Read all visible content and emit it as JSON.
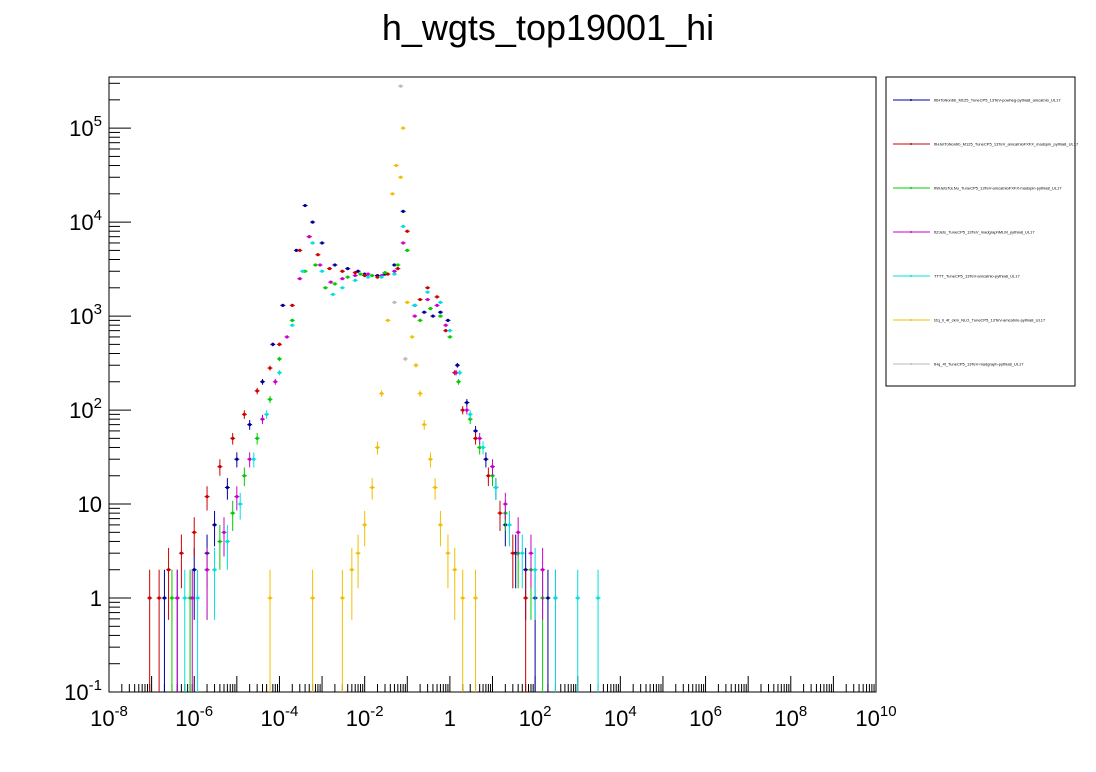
{
  "chart_data": {
    "type": "scatter",
    "title": "h_wgts_top19001_hi",
    "xlabel": "",
    "ylabel": "",
    "xscale": "log",
    "yscale": "log",
    "xlim": [
      1e-08,
      10000000000.0
    ],
    "ylim": [
      0.1,
      350000
    ],
    "x_tick_labels": [
      {
        "base": "10",
        "exp": "-8",
        "value": 1e-08
      },
      {
        "base": "10",
        "exp": "-6",
        "value": 1e-06
      },
      {
        "base": "10",
        "exp": "-4",
        "value": 0.0001
      },
      {
        "base": "10",
        "exp": "-2",
        "value": 0.01
      },
      {
        "base": "1",
        "exp": "",
        "value": 1
      },
      {
        "base": "10",
        "exp": "2",
        "value": 100
      },
      {
        "base": "10",
        "exp": "4",
        "value": 10000.0
      },
      {
        "base": "10",
        "exp": "6",
        "value": 1000000.0
      },
      {
        "base": "10",
        "exp": "8",
        "value": 100000000.0
      },
      {
        "base": "10",
        "exp": "10",
        "value": 10000000000.0
      }
    ],
    "y_tick_labels": [
      {
        "base": "10",
        "exp": "-1",
        "value": 0.1
      },
      {
        "base": "1",
        "exp": "",
        "value": 1
      },
      {
        "base": "10",
        "exp": "",
        "value": 10
      },
      {
        "base": "10",
        "exp": "2",
        "value": 100
      },
      {
        "base": "10",
        "exp": "3",
        "value": 1000
      },
      {
        "base": "10",
        "exp": "4",
        "value": 10000
      },
      {
        "base": "10",
        "exp": "5",
        "value": 100000
      }
    ],
    "legend_position": "right",
    "grid": false,
    "series": [
      {
        "name": "tttHToNonbb_M125_TuneCP5_13TeV-powheg-pythia8_amcatnlo_UL17",
        "color": "#000099",
        "points": [
          [
            2e-07,
            1
          ],
          [
            4e-07,
            1
          ],
          [
            1e-06,
            2
          ],
          [
            2e-06,
            3
          ],
          [
            3e-06,
            6
          ],
          [
            6e-06,
            15
          ],
          [
            1e-05,
            30
          ],
          [
            2e-05,
            70
          ],
          [
            4e-05,
            200
          ],
          [
            7e-05,
            500
          ],
          [
            0.00012,
            1300
          ],
          [
            0.00025,
            5000
          ],
          [
            0.0004,
            15000
          ],
          [
            0.0006,
            10000
          ],
          [
            0.001,
            6000
          ],
          [
            0.002,
            3500
          ],
          [
            0.004,
            3200
          ],
          [
            0.007,
            3000
          ],
          [
            0.01,
            2800
          ],
          [
            0.02,
            2700
          ],
          [
            0.03,
            2800
          ],
          [
            0.05,
            3500
          ],
          [
            0.08,
            13000
          ],
          [
            0.15,
            1300
          ],
          [
            0.25,
            1100
          ],
          [
            0.4,
            1000
          ],
          [
            0.6,
            1100
          ],
          [
            0.9,
            900
          ],
          [
            1.5,
            300
          ],
          [
            2.5,
            120
          ],
          [
            4,
            60
          ],
          [
            7,
            30
          ],
          [
            12,
            15
          ],
          [
            20,
            6
          ],
          [
            35,
            3
          ],
          [
            60,
            2
          ],
          [
            100,
            1
          ],
          [
            200,
            1
          ]
        ]
      },
      {
        "name": "ttHJetToNonbb_M125_TuneCP5_13TeV_amcatnloFXFX_madspin_pythia8_UL17",
        "color": "#cc0000",
        "points": [
          [
            9e-08,
            1
          ],
          [
            1.5e-07,
            1
          ],
          [
            2.5e-07,
            2
          ],
          [
            5e-07,
            3
          ],
          [
            1e-06,
            5
          ],
          [
            2e-06,
            12
          ],
          [
            4e-06,
            25
          ],
          [
            8e-06,
            50
          ],
          [
            1.5e-05,
            90
          ],
          [
            3e-05,
            160
          ],
          [
            6e-05,
            280
          ],
          [
            0.0001,
            500
          ],
          [
            0.0002,
            1300
          ],
          [
            0.0003,
            5000
          ],
          [
            0.0005,
            7000
          ],
          [
            0.0008,
            4500
          ],
          [
            0.0015,
            3200
          ],
          [
            0.003,
            3000
          ],
          [
            0.006,
            2900
          ],
          [
            0.01,
            2700
          ],
          [
            0.02,
            2600
          ],
          [
            0.035,
            2800
          ],
          [
            0.06,
            3200
          ],
          [
            0.1,
            8000
          ],
          [
            0.2,
            1500
          ],
          [
            0.3,
            2000
          ],
          [
            0.5,
            1600
          ],
          [
            0.8,
            700
          ],
          [
            1.3,
            250
          ],
          [
            2,
            100
          ],
          [
            4,
            50
          ],
          [
            8,
            20
          ],
          [
            15,
            8
          ],
          [
            30,
            3
          ],
          [
            60,
            1
          ]
        ]
      },
      {
        "name": "ttWJetsToLNu_TuneCP5_13TeV-amcatnloFXFX-madspin-pythia8_UL17",
        "color": "#00cc00",
        "points": [
          [
            3e-07,
            1
          ],
          [
            8e-07,
            1
          ],
          [
            2e-06,
            2
          ],
          [
            4e-06,
            4
          ],
          [
            8e-06,
            8
          ],
          [
            1.5e-05,
            20
          ],
          [
            3e-05,
            50
          ],
          [
            6e-05,
            130
          ],
          [
            0.0001,
            350
          ],
          [
            0.0002,
            900
          ],
          [
            0.0004,
            3000
          ],
          [
            0.0007,
            3500
          ],
          [
            0.0012,
            2000
          ],
          [
            0.002,
            2200
          ],
          [
            0.004,
            2600
          ],
          [
            0.008,
            2800
          ],
          [
            0.015,
            2700
          ],
          [
            0.03,
            2900
          ],
          [
            0.06,
            3500
          ],
          [
            0.1,
            5000
          ],
          [
            0.2,
            900
          ],
          [
            0.35,
            1200
          ],
          [
            0.6,
            1000
          ],
          [
            1,
            600
          ],
          [
            1.6,
            200
          ],
          [
            3,
            80
          ],
          [
            5,
            40
          ],
          [
            10,
            20
          ],
          [
            20,
            8
          ],
          [
            40,
            3
          ],
          [
            80,
            2
          ],
          [
            150,
            1
          ]
        ]
      },
      {
        "name": "ttZJets_TuneCP5_13TeV_madgraphMLM_pythia8_UL17",
        "color": "#cc00cc",
        "points": [
          [
            4e-07,
            1
          ],
          [
            9e-07,
            1
          ],
          [
            2e-06,
            2
          ],
          [
            5e-06,
            5
          ],
          [
            1e-05,
            12
          ],
          [
            2e-05,
            30
          ],
          [
            4e-05,
            80
          ],
          [
            8e-05,
            200
          ],
          [
            0.00015,
            600
          ],
          [
            0.0003,
            2500
          ],
          [
            0.0005,
            7000
          ],
          [
            0.0009,
            3500
          ],
          [
            0.0016,
            2300
          ],
          [
            0.003,
            2500
          ],
          [
            0.006,
            2700
          ],
          [
            0.012,
            2800
          ],
          [
            0.025,
            2700
          ],
          [
            0.05,
            3000
          ],
          [
            0.08,
            6000
          ],
          [
            0.15,
            1000
          ],
          [
            0.3,
            1500
          ],
          [
            0.5,
            1300
          ],
          [
            0.8,
            800
          ],
          [
            1.4,
            250
          ],
          [
            2.5,
            100
          ],
          [
            5,
            50
          ],
          [
            10,
            25
          ],
          [
            20,
            10
          ],
          [
            40,
            5
          ],
          [
            80,
            3
          ],
          [
            150,
            2
          ],
          [
            300,
            1
          ]
        ]
      },
      {
        "name": "TTTT_TuneCP5_13TeV-amcatnlo-pythia8_UL17",
        "color": "#00e0e0",
        "points": [
          [
            6e-07,
            1
          ],
          [
            1.2e-06,
            1
          ],
          [
            3e-06,
            2
          ],
          [
            6e-06,
            4
          ],
          [
            1.2e-05,
            10
          ],
          [
            2.5e-05,
            30
          ],
          [
            5e-05,
            90
          ],
          [
            0.0001,
            250
          ],
          [
            0.0002,
            800
          ],
          [
            0.00035,
            3000
          ],
          [
            0.0006,
            6000
          ],
          [
            0.001,
            3000
          ],
          [
            0.0018,
            1700
          ],
          [
            0.003,
            2000
          ],
          [
            0.006,
            2400
          ],
          [
            0.012,
            2600
          ],
          [
            0.025,
            2600
          ],
          [
            0.05,
            2800
          ],
          [
            0.08,
            9000
          ],
          [
            0.15,
            1300
          ],
          [
            0.3,
            1800
          ],
          [
            0.6,
            1400
          ],
          [
            1,
            700
          ],
          [
            1.7,
            250
          ],
          [
            3,
            90
          ],
          [
            6,
            40
          ],
          [
            12,
            15
          ],
          [
            25,
            6
          ],
          [
            50,
            3
          ],
          [
            100,
            2
          ],
          [
            300,
            1
          ],
          [
            1000,
            1
          ],
          [
            3000,
            1
          ]
        ]
      },
      {
        "name": "tZq_ll_4f_ckm_NLO_TuneCP5_13TeV-amcatnlo-pythia8_UL17",
        "color": "#f0c000",
        "points": [
          [
            6e-05,
            1
          ],
          [
            0.0006,
            1
          ],
          [
            0.003,
            1
          ],
          [
            0.005,
            2
          ],
          [
            0.007,
            3
          ],
          [
            0.01,
            6
          ],
          [
            0.015,
            15
          ],
          [
            0.02,
            40
          ],
          [
            0.025,
            150
          ],
          [
            0.035,
            900
          ],
          [
            0.045,
            20000
          ],
          [
            0.055,
            40000
          ],
          [
            0.07,
            30000
          ],
          [
            0.08,
            100000
          ],
          [
            0.1,
            1400
          ],
          [
            0.13,
            600
          ],
          [
            0.16,
            300
          ],
          [
            0.2,
            150
          ],
          [
            0.25,
            70
          ],
          [
            0.35,
            30
          ],
          [
            0.45,
            15
          ],
          [
            0.6,
            6
          ],
          [
            0.9,
            3
          ],
          [
            1.3,
            2
          ],
          [
            2,
            1
          ],
          [
            4,
            1
          ]
        ]
      },
      {
        "name": "tHq_4f_TuneCP5_13TeV-madgraph-pythia8_UL17",
        "color": "#bbbbbb",
        "points": [
          [
            0.05,
            1400
          ],
          [
            0.07,
            280000
          ],
          [
            0.09,
            350
          ]
        ]
      }
    ]
  }
}
